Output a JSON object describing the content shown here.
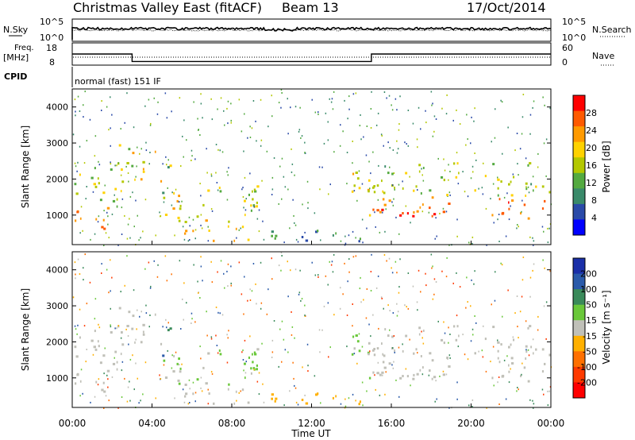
{
  "header": {
    "title": "Christmas Valley East (fitACF)",
    "beam": "Beam 13",
    "date": "17/Oct/2014"
  },
  "noise_panel": {
    "left_label": "N.Sky",
    "right_label": "N.Search",
    "left_ticks": [
      "10^5",
      "10^0"
    ],
    "right_ticks": [
      "10^5",
      "10^0"
    ]
  },
  "freq_panel": {
    "left_label_line1": "Freq.",
    "left_label_line2": "[MHz]",
    "right_label": "Nave",
    "left_ticks": [
      "18",
      "8"
    ],
    "right_ticks": [
      "60",
      "0"
    ],
    "freq_steps": [
      {
        "start_hour": 0,
        "freq_mhz": 15
      },
      {
        "start_hour": 3,
        "freq_mhz": 10.3
      },
      {
        "start_hour": 15,
        "freq_mhz": 15
      }
    ]
  },
  "cpid": {
    "label": "CPID",
    "text": "normal (fast) 151 IF"
  },
  "power_panel": {
    "ylabel": "Slant Range [km]",
    "yticks": [
      "4000",
      "3000",
      "2000",
      "1000"
    ],
    "colorbar_label": "Power [dB]",
    "colorbar_ticks": [
      "28",
      "24",
      "20",
      "16",
      "12",
      "8",
      "4"
    ],
    "colorbar_colors": [
      "#ff0000",
      "#ff5a00",
      "#ff9a00",
      "#ffd200",
      "#b4c800",
      "#54aa40",
      "#3a8a6a",
      "#2a4aa8",
      "#0000ff"
    ]
  },
  "velocity_panel": {
    "ylabel": "Slant Range [km]",
    "yticks": [
      "4000",
      "3000",
      "2000",
      "1000"
    ],
    "colorbar_label": "Velocity [m s⁻¹]",
    "colorbar_ticks": [
      "200",
      "100",
      "50",
      "15",
      "-15",
      "-50",
      "-100",
      "-200"
    ],
    "colorbar_colors": [
      "#1a2fa8",
      "#2a5aaa",
      "#3a8a5a",
      "#6ac83a",
      "#c0c0b8",
      "#ffb000",
      "#ff7000",
      "#ff3a00",
      "#ff0000"
    ]
  },
  "x_axis": {
    "ticks": [
      "00:00",
      "04:00",
      "08:00",
      "12:00",
      "16:00",
      "20:00",
      "00:00"
    ],
    "label": "Time UT"
  },
  "chart_data": {
    "type": "heatmap",
    "title": "Christmas Valley East (fitACF)",
    "subtitle": "Beam 13",
    "date": "17/Oct/2014",
    "xlabel": "Time UT",
    "ylabel": "Slant Range [km]",
    "x_range_hours": [
      0,
      24
    ],
    "y_range_km": [
      180,
      4500
    ],
    "power_range_db": [
      0,
      30
    ],
    "velocity_range_ms": [
      -250,
      250
    ],
    "scatter_regions": [
      {
        "t0": 0.0,
        "t1": 2.0,
        "r0": 600,
        "r1": 1400,
        "power_db": 26,
        "velocity": 5
      },
      {
        "t0": 0.0,
        "t1": 2.0,
        "r0": 1400,
        "r1": 2500,
        "power_db": 16,
        "velocity": 5
      },
      {
        "t0": 1.8,
        "t1": 3.0,
        "r0": 1200,
        "r1": 3000,
        "power_db": 14,
        "velocity": 5
      },
      {
        "t0": 3.0,
        "t1": 4.5,
        "r0": 1900,
        "r1": 2800,
        "power_db": 18,
        "velocity": 0
      },
      {
        "t0": 4.5,
        "t1": 5.0,
        "r0": 1500,
        "r1": 2600,
        "power_db": 12,
        "velocity": 150
      },
      {
        "t0": 4.0,
        "t1": 7.0,
        "r0": 800,
        "r1": 1700,
        "power_db": 18,
        "velocity": 30
      },
      {
        "t0": 7.0,
        "t1": 9.5,
        "r0": 600,
        "r1": 1800,
        "power_db": 16,
        "velocity": 40
      },
      {
        "t0": 5.0,
        "t1": 9.0,
        "r0": 250,
        "r1": 700,
        "power_db": 22,
        "velocity": 5
      },
      {
        "t0": 9.0,
        "t1": 14.5,
        "r0": 200,
        "r1": 600,
        "power_db": 8,
        "velocity": -40
      },
      {
        "t0": 13.8,
        "t1": 15.0,
        "r0": 900,
        "r1": 2400,
        "power_db": 18,
        "velocity": 35
      },
      {
        "t0": 15.0,
        "t1": 24.0,
        "r0": 850,
        "r1": 1500,
        "power_db": 26,
        "velocity": 0
      },
      {
        "t0": 15.0,
        "t1": 24.0,
        "r0": 1500,
        "r1": 2500,
        "power_db": 14,
        "velocity": 0
      }
    ]
  }
}
